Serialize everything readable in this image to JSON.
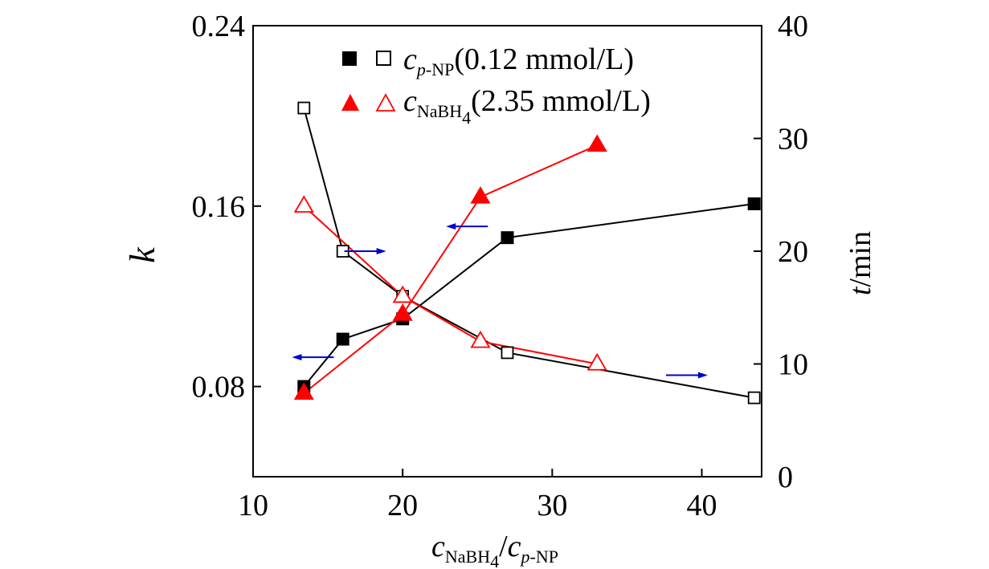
{
  "chart_data": {
    "type": "scatter",
    "x": {
      "min": 10,
      "max": 44,
      "ticks": [
        10,
        20,
        30,
        40
      ],
      "tick_labels": [
        "10",
        "20",
        "30",
        "40"
      ],
      "label": {
        "main_a": "c",
        "sub_a": "NaBH",
        "sub_a_idx": "4",
        "slash": "/",
        "main_b": "c",
        "sub_b_p": "p",
        "sub_b_rest": "-NP"
      }
    },
    "y_left": {
      "min": 0.04,
      "max": 0.24,
      "ticks": [
        0.08,
        0.16,
        0.24
      ],
      "tick_labels": [
        "0.08",
        "0.16",
        "0.24"
      ],
      "label": "k"
    },
    "y_right": {
      "min": 0,
      "max": 40,
      "ticks": [
        0,
        10,
        20,
        30,
        40
      ],
      "tick_labels": [
        "0",
        "10",
        "20",
        "30",
        "40"
      ],
      "label": {
        "italic": "t",
        "rest": "/min"
      }
    },
    "series": [
      {
        "name": "k (c p-NP varied)",
        "axis": "left",
        "marker": "square",
        "filled": true,
        "color": "#000000",
        "x": [
          13.4,
          16.0,
          20.0,
          27.0,
          43.5
        ],
        "y": [
          0.08,
          0.101,
          0.11,
          0.146,
          0.161
        ]
      },
      {
        "name": "t (c p-NP varied)",
        "axis": "right",
        "marker": "square",
        "filled": false,
        "color": "#000000",
        "x": [
          13.4,
          16.0,
          20.0,
          27.0,
          43.5
        ],
        "y": [
          32.7,
          20.0,
          16.0,
          11.0,
          7.0
        ]
      },
      {
        "name": "k (c NaBH4 varied)",
        "axis": "left",
        "marker": "triangle",
        "filled": true,
        "color": "#ff0000",
        "x": [
          13.4,
          20.0,
          25.2,
          33.0
        ],
        "y": [
          0.077,
          0.112,
          0.164,
          0.187
        ]
      },
      {
        "name": "t (c NaBH4 varied)",
        "axis": "right",
        "marker": "triangle",
        "filled": false,
        "color": "#ff0000",
        "x": [
          13.4,
          20.0,
          25.2,
          33.0
        ],
        "y": [
          24.0,
          16.0,
          12.0,
          10.0
        ]
      }
    ],
    "legend": [
      {
        "marker": "square",
        "color": "#000000",
        "main": "c",
        "sub": "p-NP",
        "sub_italic_part": "p",
        "sub_rest": "-NP",
        "conc": "(0.12 mmol/L)"
      },
      {
        "marker": "triangle",
        "color": "#ff0000",
        "main": "c",
        "sub": "NaBH",
        "sub_idx": "4",
        "conc": "(2.35 mmol/L)"
      }
    ],
    "legend_position": "top-center",
    "annotations": [
      {
        "type": "arrow",
        "direction": "left",
        "color": "#0000cc",
        "meaning": "left axis",
        "x": 14.0,
        "y_left": 0.093
      },
      {
        "type": "arrow",
        "direction": "right",
        "color": "#0000cc",
        "meaning": "right axis",
        "x": 17.5,
        "y_right": 20.0
      },
      {
        "type": "arrow",
        "direction": "left",
        "color": "#0000cc",
        "meaning": "left axis",
        "x": 24.3,
        "y_left": 0.151
      },
      {
        "type": "arrow",
        "direction": "right",
        "color": "#0000cc",
        "meaning": "right axis",
        "x": 39.0,
        "y_right": 9.0
      }
    ],
    "grid": false
  }
}
